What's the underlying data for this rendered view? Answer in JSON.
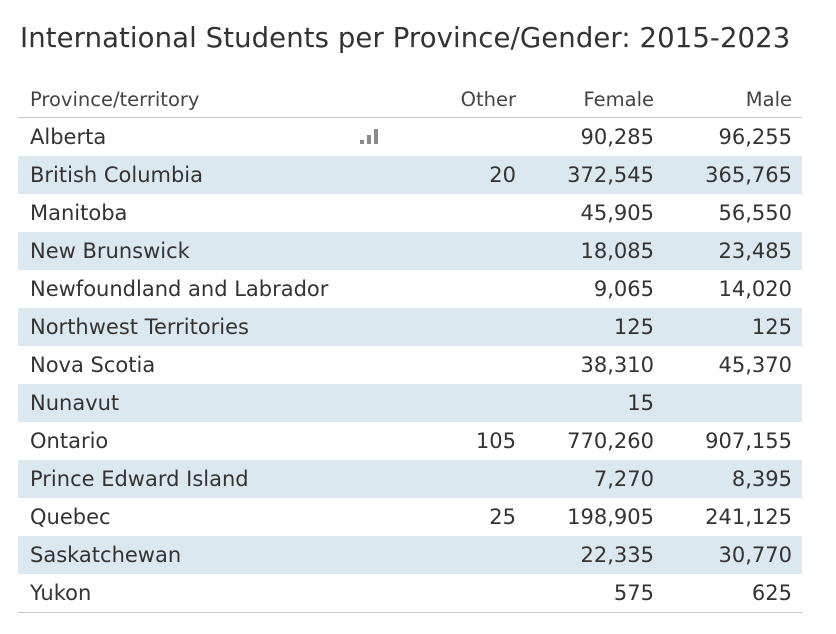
{
  "chart_data": {
    "type": "table",
    "title": "International Students per Province/Gender: 2015-2023",
    "columns": [
      "Province/territory",
      "Other",
      "Female",
      "Male"
    ],
    "rows": [
      {
        "province": "Alberta",
        "other": "",
        "female": "90,285",
        "male": "96,255"
      },
      {
        "province": "British Columbia",
        "other": "20",
        "female": "372,545",
        "male": "365,765"
      },
      {
        "province": "Manitoba",
        "other": "",
        "female": "45,905",
        "male": "56,550"
      },
      {
        "province": "New Brunswick",
        "other": "",
        "female": "18,085",
        "male": "23,485"
      },
      {
        "province": "Newfoundland and Labrador",
        "other": "",
        "female": "9,065",
        "male": "14,020"
      },
      {
        "province": "Northwest Territories",
        "other": "",
        "female": "125",
        "male": "125"
      },
      {
        "province": "Nova Scotia",
        "other": "",
        "female": "38,310",
        "male": "45,370"
      },
      {
        "province": "Nunavut",
        "other": "",
        "female": "15",
        "male": ""
      },
      {
        "province": "Ontario",
        "other": "105",
        "female": "770,260",
        "male": "907,155"
      },
      {
        "province": "Prince Edward Island",
        "other": "",
        "female": "7,270",
        "male": "8,395"
      },
      {
        "province": "Quebec",
        "other": "25",
        "female": "198,905",
        "male": "241,125"
      },
      {
        "province": "Saskatchewan",
        "other": "",
        "female": "22,335",
        "male": "30,770"
      },
      {
        "province": "Yukon",
        "other": "",
        "female": "575",
        "male": "625"
      }
    ]
  },
  "icons": {
    "row_action": "bar-chart-icon"
  },
  "colors": {
    "band": "#dce8ef",
    "text": "#333333",
    "rule": "#c8c8c8",
    "icon": "#8a8a8a"
  }
}
